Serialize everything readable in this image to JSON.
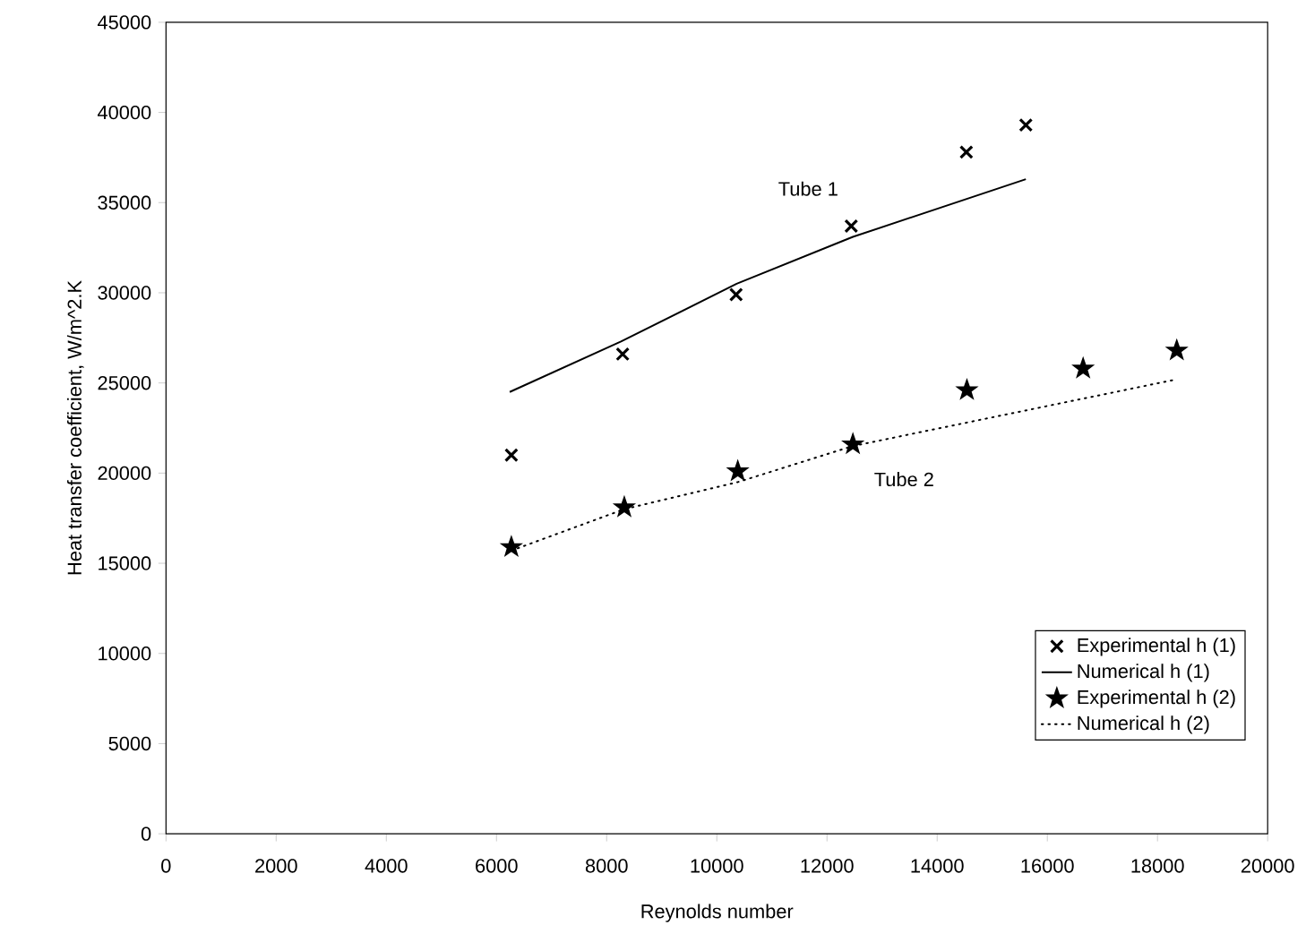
{
  "chart_data": {
    "type": "scatter",
    "xlabel": "Reynolds number",
    "ylabel": "Heat transfer coefficient, W/m^2.K",
    "xlim": [
      0,
      20000
    ],
    "ylim": [
      0,
      45000
    ],
    "xticks": [
      0,
      2000,
      4000,
      6000,
      8000,
      10000,
      12000,
      14000,
      16000,
      18000,
      20000
    ],
    "yticks": [
      0,
      5000,
      10000,
      15000,
      20000,
      25000,
      30000,
      35000,
      40000,
      45000
    ],
    "grid": false,
    "legend": "bottom right",
    "annotations": [
      "Tube 1",
      "Tube 2"
    ],
    "series": [
      {
        "name": "Experimental h (1)",
        "marker": "cross",
        "color": "#000000",
        "x": [
          6270,
          8290,
          10350,
          12440,
          14530,
          15610
        ],
        "values": [
          21000,
          26600,
          29900,
          33700,
          37800,
          39300
        ]
      },
      {
        "name": "Numerical h (1)",
        "type": "line",
        "marker": "none",
        "line_style": "solid",
        "color": "#000000",
        "x": [
          6240,
          8260,
          10360,
          12470,
          15610
        ],
        "values": [
          24500,
          27300,
          30500,
          33100,
          36300
        ]
      },
      {
        "name": "Experimental h (2)",
        "marker": "star",
        "color": "#000000",
        "x": [
          6270,
          8320,
          10380,
          12470,
          14540,
          16650,
          18350
        ],
        "values": [
          15900,
          18100,
          20100,
          21600,
          24600,
          25800,
          26800
        ]
      },
      {
        "name": "Numerical h (2)",
        "type": "line",
        "marker": "none",
        "line_style": "dotted",
        "color": "#000000",
        "x": [
          6270,
          8320,
          10380,
          12470,
          18350
        ],
        "values": [
          15700,
          18000,
          19500,
          21500,
          25200
        ]
      }
    ]
  }
}
